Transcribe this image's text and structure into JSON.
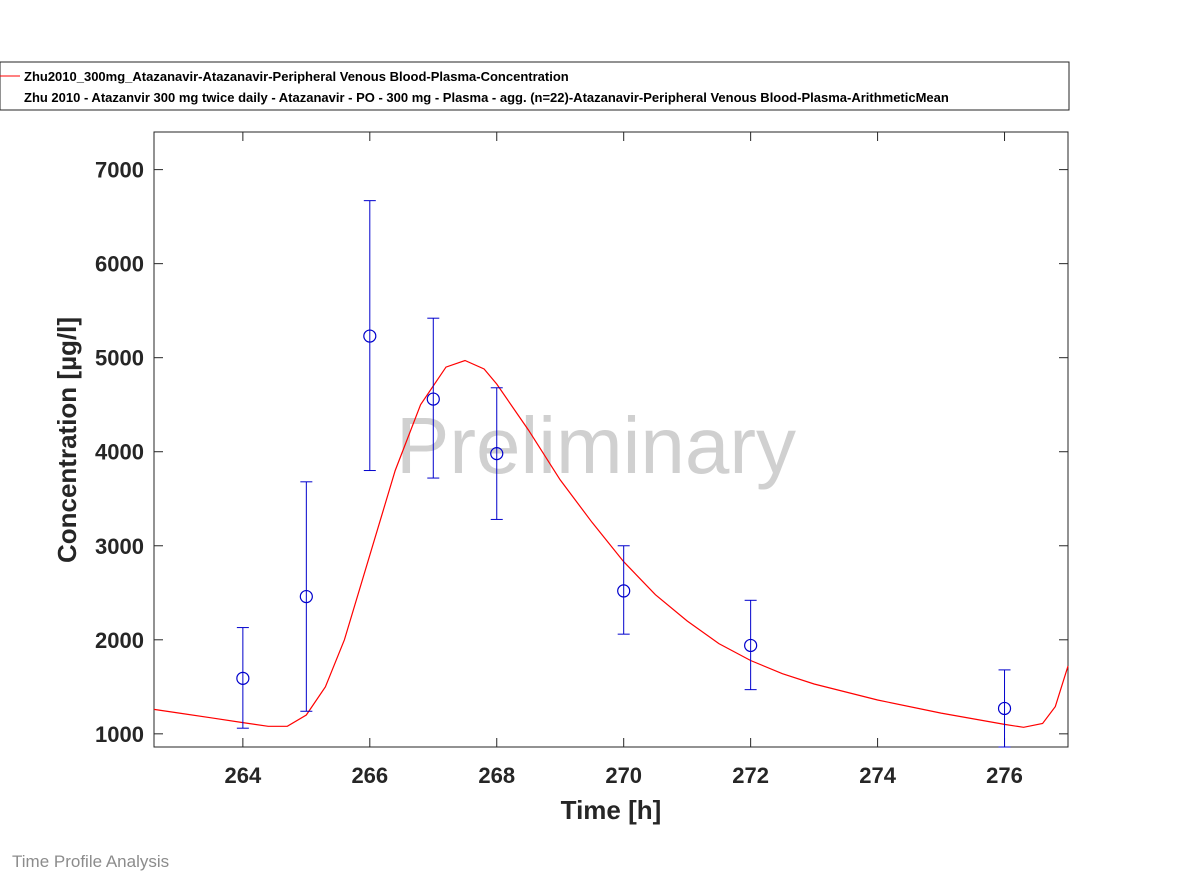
{
  "footer_text": "Time Profile Analysis",
  "watermark": "Preliminary",
  "colors": {
    "simulation": "#ff0000",
    "observed": "#0000cc",
    "axes": "#262626"
  },
  "chart_data": {
    "type": "line",
    "xlabel": "Time [h]",
    "ylabel": "Concentration [µg/l]",
    "xlim": [
      262.6,
      277
    ],
    "ylim": [
      860,
      7400
    ],
    "xticks": [
      264,
      266,
      268,
      270,
      272,
      274,
      276
    ],
    "yticks": [
      1000,
      2000,
      3000,
      4000,
      5000,
      6000,
      7000
    ],
    "legend_position": "top",
    "series": [
      {
        "name": "Zhu2010_300mg_Atazanavir-Atazanavir-Peripheral Venous Blood-Plasma-Concentration",
        "kind": "line",
        "x": [
          262.6,
          263.0,
          263.5,
          264.0,
          264.4,
          264.7,
          265.0,
          265.3,
          265.6,
          266.0,
          266.4,
          266.8,
          267.2,
          267.5,
          267.8,
          268.0,
          268.5,
          269.0,
          269.5,
          270.0,
          270.5,
          271.0,
          271.5,
          272.0,
          272.5,
          273.0,
          274.0,
          275.0,
          276.0,
          276.3,
          276.6,
          276.8,
          277.0
        ],
        "y": [
          1260,
          1220,
          1170,
          1120,
          1080,
          1080,
          1200,
          1500,
          2000,
          2900,
          3800,
          4500,
          4900,
          4970,
          4880,
          4720,
          4230,
          3700,
          3250,
          2830,
          2480,
          2200,
          1960,
          1780,
          1640,
          1530,
          1360,
          1220,
          1100,
          1070,
          1110,
          1290,
          1720
        ]
      },
      {
        "name": "Zhu 2010 - Atazanvir 300 mg twice daily - Atazanavir - PO - 300 mg - Plasma - agg. (n=22)-Atazanavir-Peripheral Venous Blood-Plasma-ArithmeticMean",
        "kind": "errorbar",
        "x": [
          264,
          265,
          266,
          267,
          268,
          270,
          272,
          276
        ],
        "y": [
          1590,
          2460,
          5230,
          4560,
          3980,
          2520,
          1940,
          1270
        ],
        "lower": [
          1060,
          1240,
          3800,
          3720,
          3280,
          2060,
          1470,
          860
        ],
        "upper": [
          2130,
          3680,
          6670,
          5420,
          4680,
          3000,
          2420,
          1680
        ]
      }
    ]
  }
}
